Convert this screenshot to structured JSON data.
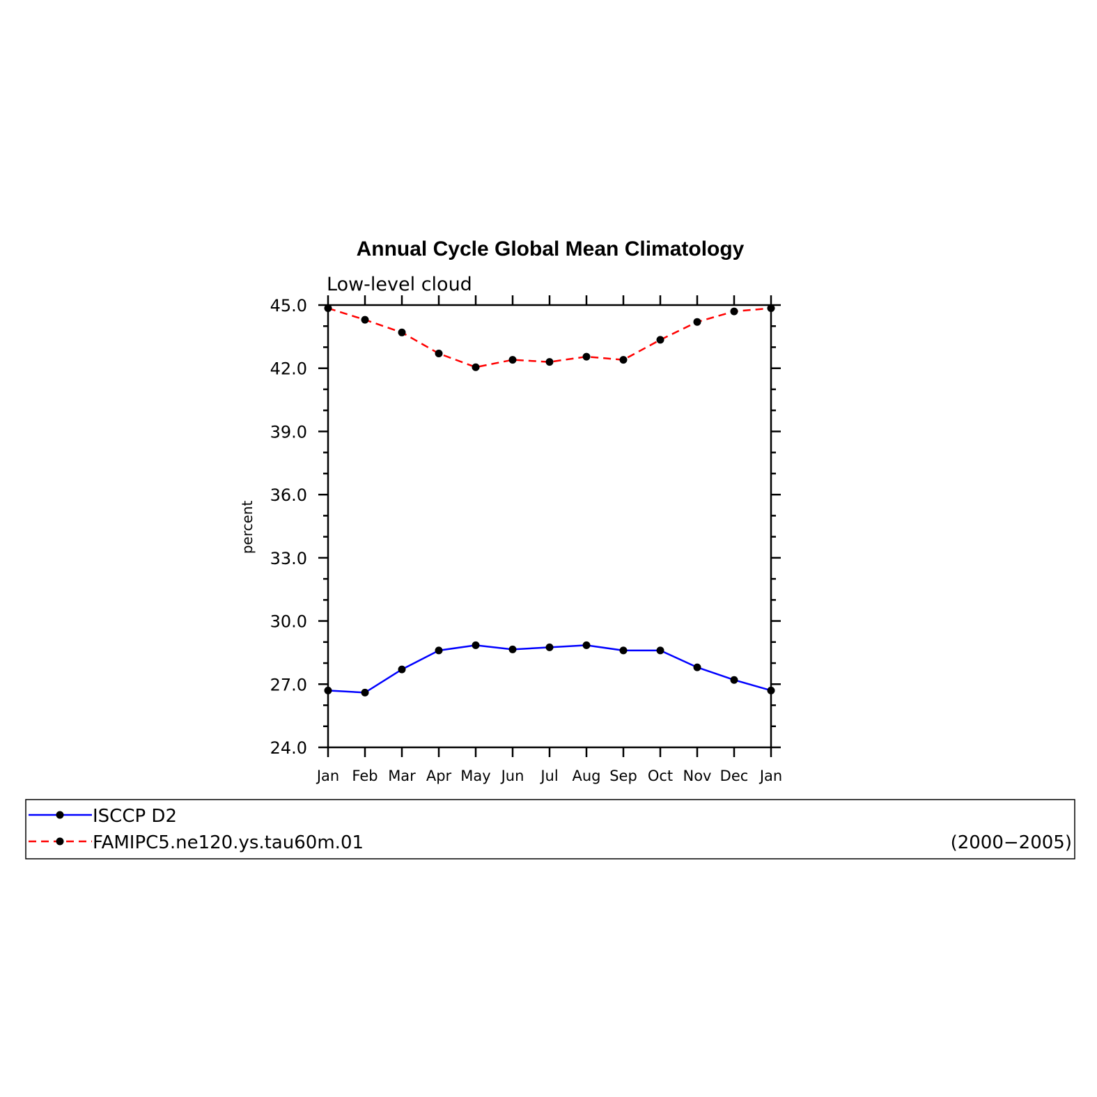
{
  "chart_data": {
    "type": "line",
    "title": "Annual Cycle Global Mean Climatology",
    "subtitle": "Low-level cloud",
    "xlabel": "",
    "ylabel": "percent",
    "categories": [
      "Jan",
      "Feb",
      "Mar",
      "Apr",
      "May",
      "Jun",
      "Jul",
      "Aug",
      "Sep",
      "Oct",
      "Nov",
      "Dec",
      "Jan"
    ],
    "ylim": [
      24.0,
      45.0
    ],
    "yticks": [
      "24.0",
      "27.0",
      "30.0",
      "33.0",
      "36.0",
      "39.0",
      "42.0",
      "45.0"
    ],
    "grid": false,
    "legend_position": "bottom",
    "series": [
      {
        "name": "ISCCP D2",
        "color": "#0000ff",
        "line_style": "solid",
        "marker": "filled-circle",
        "values": [
          26.7,
          26.6,
          27.7,
          28.6,
          28.85,
          28.65,
          28.75,
          28.85,
          28.6,
          28.6,
          27.8,
          27.2,
          26.7
        ]
      },
      {
        "name": "FAMIPC5.ne120.ys.tau60m.01",
        "color": "#ff0000",
        "line_style": "dashed",
        "marker": "filled-circle",
        "values": [
          44.85,
          44.3,
          43.7,
          42.7,
          42.05,
          42.4,
          42.3,
          42.55,
          42.4,
          43.35,
          44.2,
          44.7,
          44.85
        ]
      }
    ],
    "annotation": "(2000−2005)"
  }
}
